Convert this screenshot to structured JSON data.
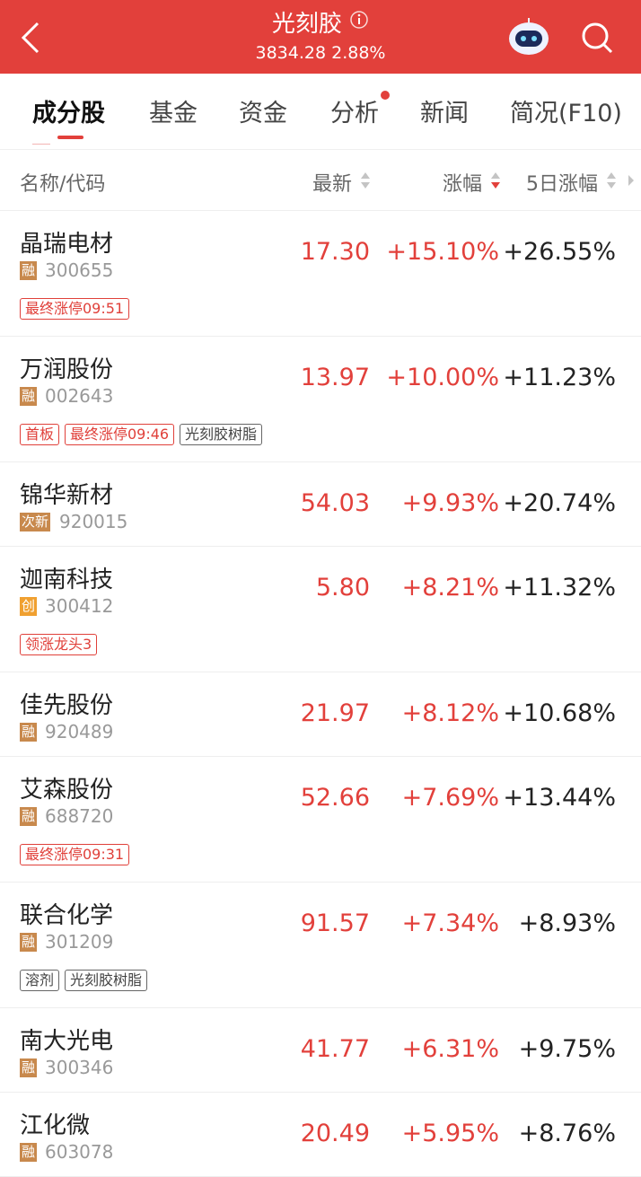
{
  "header": {
    "title": "光刻胶",
    "index": "3834.28",
    "change": "2.88%"
  },
  "tabs": [
    "成分股",
    "基金",
    "资金",
    "分析",
    "新闻",
    "简况(F10)"
  ],
  "columns": [
    "名称/代码",
    "最新",
    "涨幅",
    "5日涨幅"
  ],
  "rows": [
    {
      "name": "晶瑞电材",
      "badge": {
        "text": "融",
        "color": "#c8894d"
      },
      "code": "300655",
      "price": "17.30",
      "change": "+15.10%",
      "change5": "+26.55%",
      "tags": [
        {
          "text": "最终涨停09:51",
          "color": "#e0403a"
        }
      ]
    },
    {
      "name": "万润股份",
      "badge": {
        "text": "融",
        "color": "#c8894d"
      },
      "code": "002643",
      "price": "13.97",
      "change": "+10.00%",
      "change5": "+11.23%",
      "tags": [
        {
          "text": "首板",
          "color": "#e0403a"
        },
        {
          "text": "最终涨停09:46",
          "color": "#e0403a"
        },
        {
          "text": "光刻胶树脂",
          "color": "#666666"
        }
      ]
    },
    {
      "name": "锦华新材",
      "badge": {
        "text": "次新",
        "color": "#c8894d"
      },
      "code": "920015",
      "price": "54.03",
      "change": "+9.93%",
      "change5": "+20.74%",
      "tags": []
    },
    {
      "name": "迦南科技",
      "badge": {
        "text": "创",
        "color": "#f0a030"
      },
      "code": "300412",
      "price": "5.80",
      "change": "+8.21%",
      "change5": "+11.32%",
      "tags": [
        {
          "text": "领涨龙头3",
          "color": "#e0403a"
        }
      ]
    },
    {
      "name": "佳先股份",
      "badge": {
        "text": "融",
        "color": "#c8894d"
      },
      "code": "920489",
      "price": "21.97",
      "change": "+8.12%",
      "change5": "+10.68%",
      "tags": []
    },
    {
      "name": "艾森股份",
      "badge": {
        "text": "融",
        "color": "#c8894d"
      },
      "code": "688720",
      "price": "52.66",
      "change": "+7.69%",
      "change5": "+13.44%",
      "tags": [
        {
          "text": "最终涨停09:31",
          "color": "#e0403a"
        }
      ]
    },
    {
      "name": "联合化学",
      "badge": {
        "text": "融",
        "color": "#c8894d"
      },
      "code": "301209",
      "price": "91.57",
      "change": "+7.34%",
      "change5": "+8.93%",
      "tags": [
        {
          "text": "溶剂",
          "color": "#666666"
        },
        {
          "text": "光刻胶树脂",
          "color": "#666666"
        }
      ]
    },
    {
      "name": "南大光电",
      "badge": {
        "text": "融",
        "color": "#c8894d"
      },
      "code": "300346",
      "price": "41.77",
      "change": "+6.31%",
      "change5": "+9.75%",
      "tags": []
    },
    {
      "name": "江化微",
      "badge": {
        "text": "融",
        "color": "#c8894d"
      },
      "code": "603078",
      "price": "20.49",
      "change": "+5.95%",
      "change5": "+8.76%",
      "tags": []
    }
  ]
}
